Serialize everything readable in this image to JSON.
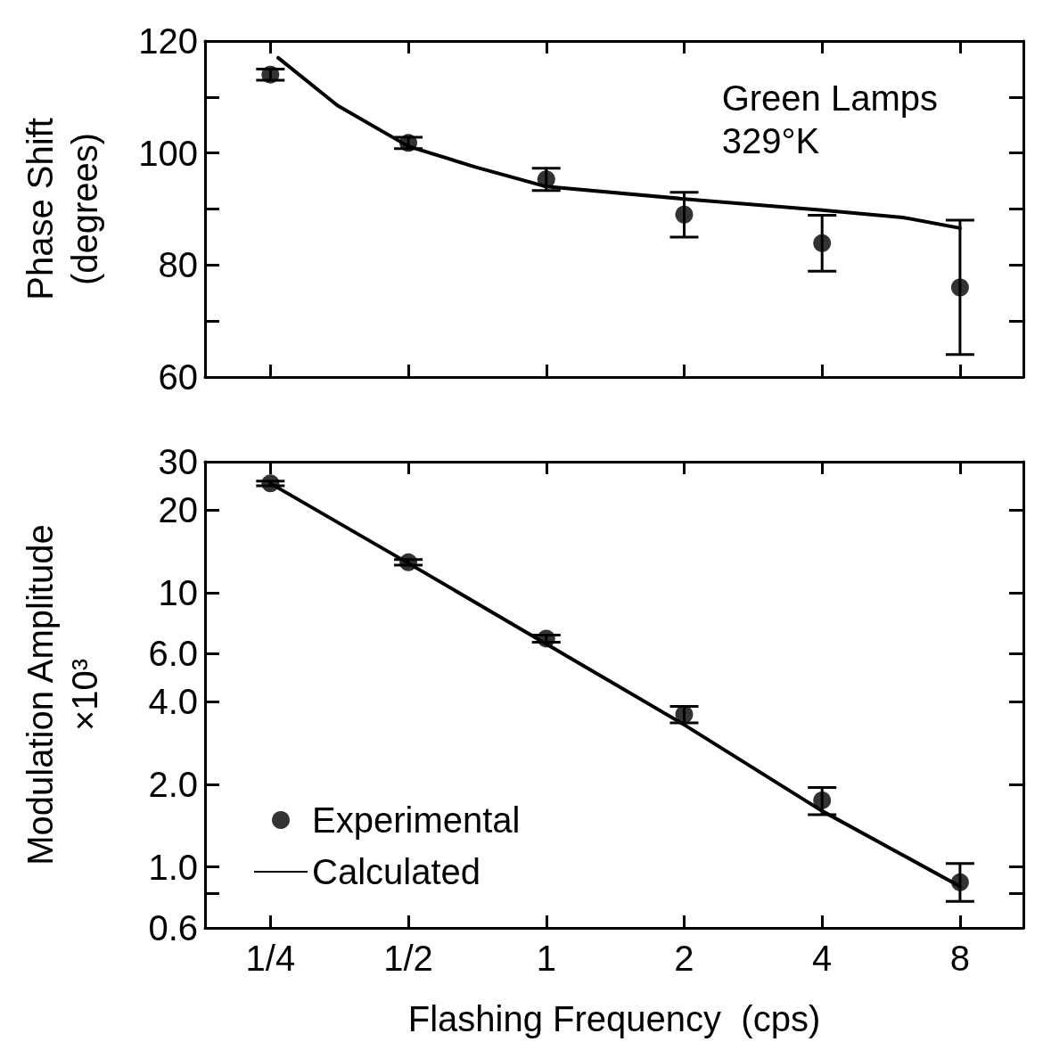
{
  "chart_data": [
    {
      "type": "scatter",
      "ylabel": "Phase Shift\n(degrees)",
      "annotations": [
        "Green Lamps\n329°K"
      ],
      "log": "x",
      "xlim": [
        0.18,
        11
      ],
      "ylim": [
        60,
        120
      ],
      "yticks": [
        60,
        {
          "value": 70,
          "label": null
        },
        80,
        {
          "value": 90,
          "label": null
        },
        100,
        {
          "value": 110,
          "label": null
        },
        120
      ],
      "tick_labels": "y",
      "grid": false,
      "legend": false,
      "marker": "circle",
      "xticks": [
        {
          "value": 0.25,
          "label": null
        },
        {
          "value": 0.5,
          "label": null
        },
        {
          "value": 1,
          "label": null
        },
        {
          "value": 2,
          "label": null
        },
        {
          "value": 4,
          "label": null
        },
        {
          "value": 8,
          "label": null
        }
      ],
      "series": [
        {
          "color": "#000000",
          "x": [
            0.25,
            0.5,
            1,
            2,
            4,
            8
          ],
          "values": [
            114,
            101.8,
            95.3,
            89,
            83.9,
            76
          ],
          "errors": [
            1,
            1,
            2,
            4,
            5,
            12
          ]
        },
        {
          "type": "line",
          "color": "#000000",
          "marker": "none",
          "line_style": "solid",
          "x": [
            0.26,
            0.35,
            0.5,
            0.7,
            1,
            2,
            4,
            6,
            8
          ],
          "values": [
            117,
            108.5,
            101.2,
            97.5,
            94,
            91.8,
            89.8,
            88.5,
            86.6
          ]
        }
      ]
    },
    {
      "type": "scatter",
      "ylabel": "Modulation Amplitude\n×10³",
      "xlabel": "Flashing Frequency  (cps)",
      "log": "xy",
      "xlim": [
        0.18,
        11
      ],
      "xticks": [
        {
          "value": 0.25,
          "label": "1/4"
        },
        {
          "value": 0.5,
          "label": "1/2"
        },
        {
          "value": 1,
          "label": "1"
        },
        {
          "value": 2,
          "label": "2"
        },
        {
          "value": 4,
          "label": "4"
        },
        {
          "value": 8,
          "label": "8"
        }
      ],
      "ylim": [
        0.6,
        30
      ],
      "yticks": [
        {
          "value": 0.6,
          "label": "0.6"
        },
        {
          "value": 0.8,
          "label": null
        },
        {
          "value": 1,
          "label": "1.0"
        },
        {
          "value": 2,
          "label": "2.0"
        },
        {
          "value": 4,
          "label": "4.0"
        },
        {
          "value": 6,
          "label": "6.0"
        },
        10,
        20,
        30
      ],
      "grid": false,
      "legend": "bottom left",
      "marker": "circle",
      "series": [
        {
          "name": "Experimental",
          "color": "#000000",
          "x": [
            0.25,
            0.5,
            1,
            2,
            4,
            8
          ],
          "values": [
            25,
            12.9,
            6.8,
            3.6,
            1.75,
            0.88
          ],
          "errors": [
            0.5,
            0.3,
            0.2,
            0.25,
            0.2,
            [
              0.75,
              1.03
            ]
          ]
        },
        {
          "type": "line",
          "name": "Calculated",
          "color": "#000000",
          "marker": "none",
          "line_style": "solid",
          "x": [
            0.25,
            0.5,
            1,
            2,
            4,
            8
          ],
          "values": [
            25,
            12.8,
            6.5,
            3.3,
            1.6,
            0.85
          ]
        }
      ]
    }
  ]
}
